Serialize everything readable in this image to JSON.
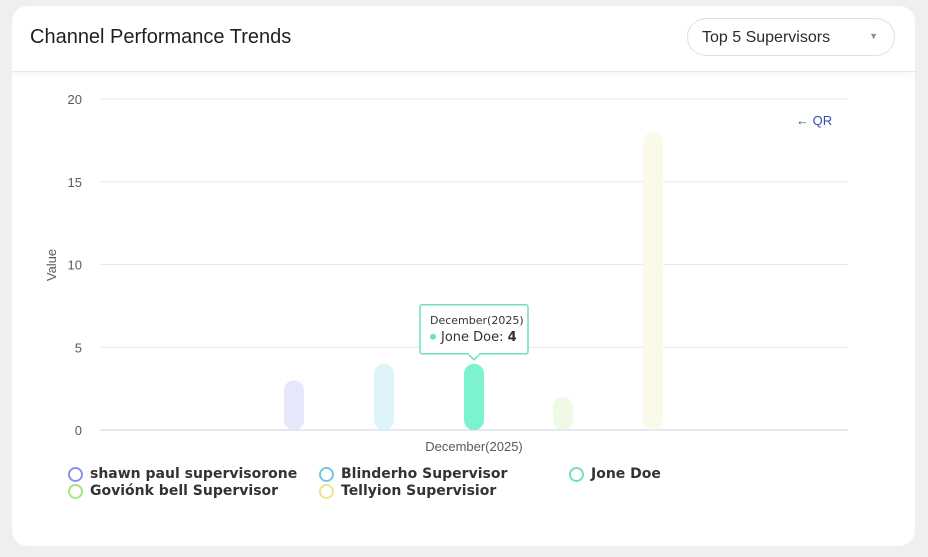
{
  "header": {
    "title": "Channel Performance Trends",
    "select_value": "Top 5 Supervisors"
  },
  "chart_data": {
    "type": "bar",
    "categories": [
      "December(2025)"
    ],
    "series": [
      {
        "name": "shawn paul supervisorone",
        "values": [
          3
        ],
        "color": "#8b93e8",
        "fill": "#e5e8fb"
      },
      {
        "name": "Blinderho Supervisor",
        "values": [
          4
        ],
        "color": "#74c6e3",
        "fill": "#dff3fa"
      },
      {
        "name": "Jone Doe",
        "values": [
          4
        ],
        "color": "#6fe0be",
        "fill": "#7cf3cf"
      },
      {
        "name": "Goviónk bell Supervisor",
        "values": [
          2
        ],
        "color": "#a8e38a",
        "fill": "#eef9e6"
      },
      {
        "name": "Tellyion Supervisior",
        "values": [
          18
        ],
        "color": "#ece58a",
        "fill": "#fbfae8"
      }
    ],
    "ylabel": "Value",
    "xlabel": "",
    "ylim": [
      0,
      20
    ],
    "yticks": [
      0,
      5,
      10,
      15,
      20
    ],
    "grid": true,
    "legend_position": "bottom",
    "annotation": "← QR",
    "tooltip": {
      "title": "December(2025)",
      "series": "Jone Doe",
      "value": "4",
      "color": "#6fe0be"
    }
  }
}
